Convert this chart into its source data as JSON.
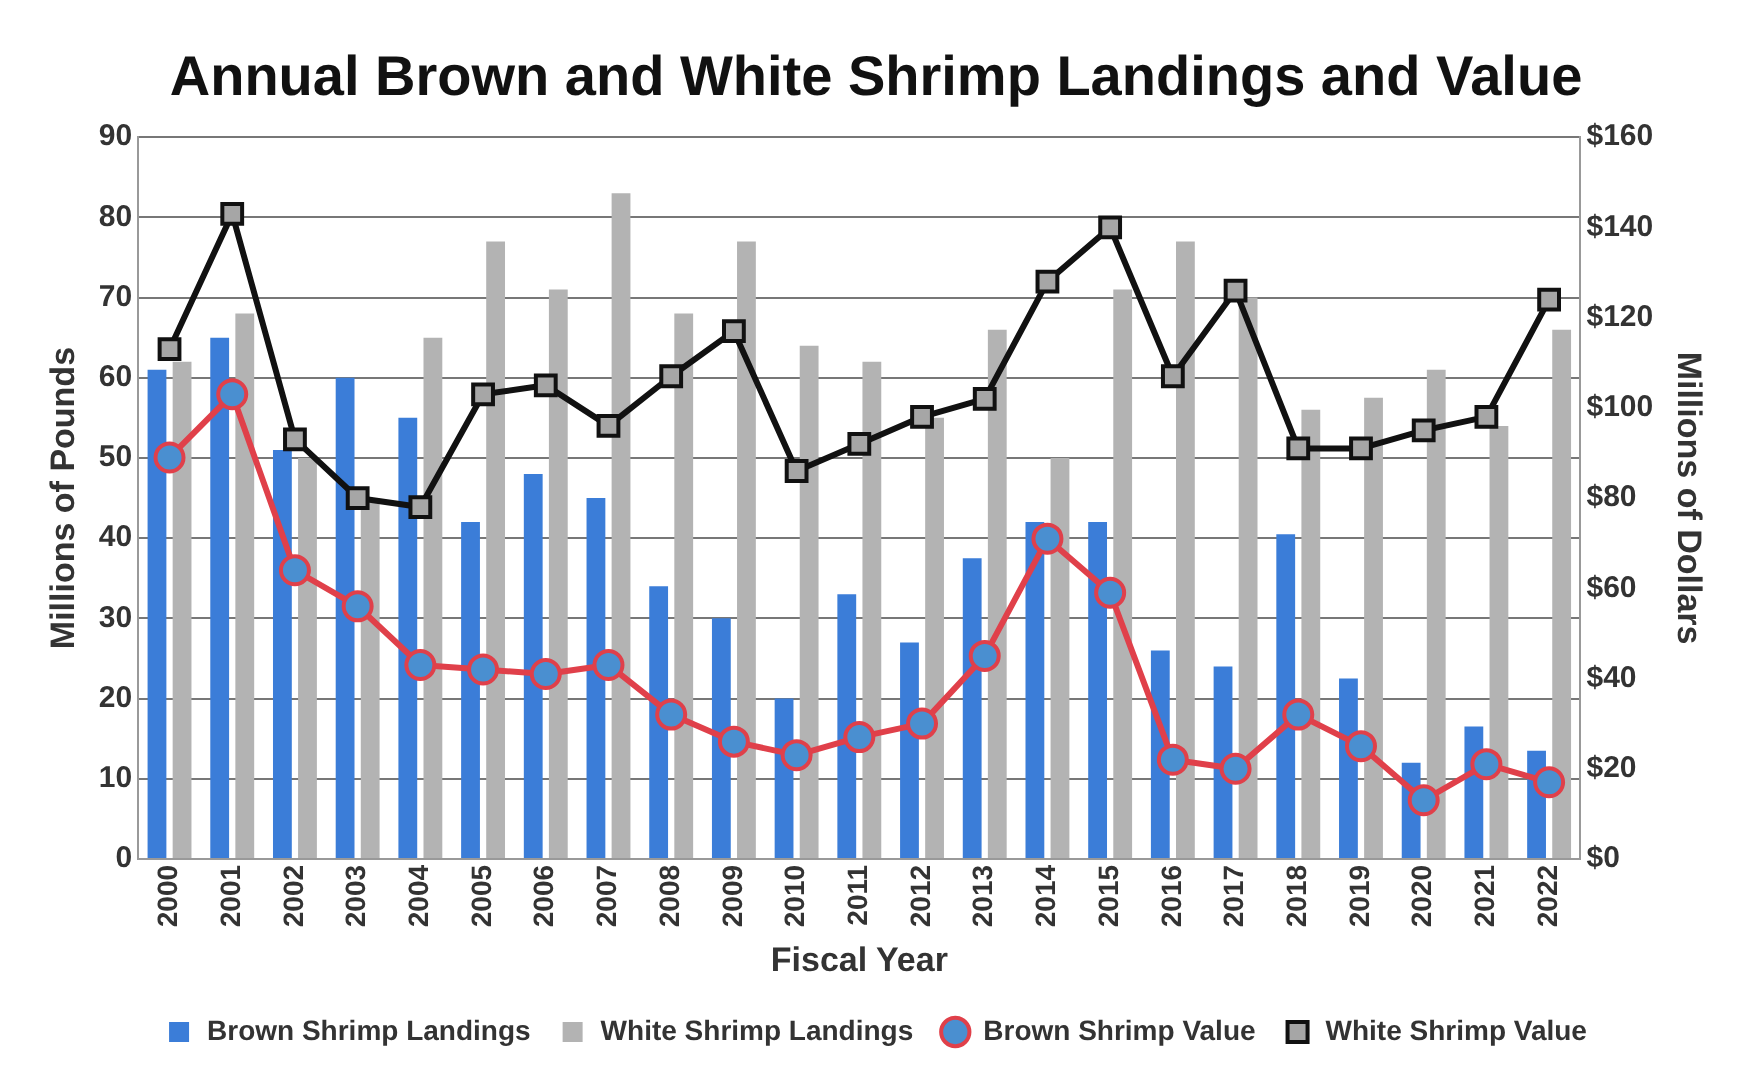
{
  "chart_data": {
    "type": "bar",
    "title": "Annual Brown and White Shrimp Landings and Value",
    "xlabel": "Fiscal Year",
    "ylabel": "Millions of Pounds",
    "y2label": "Millions of Dollars",
    "categories": [
      "2000",
      "2001",
      "2002",
      "2003",
      "2004",
      "2005",
      "2006",
      "2007",
      "2008",
      "2009",
      "2010",
      "2011",
      "2012",
      "2013",
      "2014",
      "2015",
      "2016",
      "2017",
      "2018",
      "2019",
      "2020",
      "2021",
      "2022"
    ],
    "series": [
      {
        "name": "Brown Shrimp Landings",
        "color": "#3b7dd8",
        "values": [
          61,
          65,
          51,
          60,
          55,
          42,
          48,
          45,
          34,
          30,
          20,
          33,
          27,
          37.5,
          42,
          42,
          26,
          24,
          40.5,
          22.5,
          12,
          16.5,
          13.5
        ]
      },
      {
        "name": "White Shrimp Landings",
        "color": "#b3b3b3",
        "values": [
          62,
          68,
          50,
          45,
          65,
          77,
          71,
          83,
          68,
          77,
          64,
          62,
          55,
          66,
          50,
          71,
          77,
          70,
          56,
          57.5,
          61,
          54,
          66
        ]
      },
      {
        "name": "Brown Shrimp Value",
        "type": "line",
        "axis": "y2",
        "color": "#e0404a",
        "marker": "circle",
        "values": [
          89,
          103,
          64,
          56,
          43,
          42,
          41,
          43,
          32,
          26,
          23,
          27,
          30,
          45,
          71,
          59,
          22,
          20,
          32,
          25,
          13,
          21,
          17
        ]
      },
      {
        "name": "White Shrimp Value",
        "type": "line",
        "axis": "y2",
        "color": "#111111",
        "marker": "square",
        "values": [
          113,
          143,
          93,
          80,
          78,
          103,
          105,
          96,
          107,
          117,
          86,
          92,
          98,
          102,
          128,
          140,
          107,
          126,
          91,
          91,
          95,
          98,
          124
        ]
      }
    ],
    "ylim": [
      0,
      90
    ],
    "yticks": [
      0,
      10,
      20,
      30,
      40,
      50,
      60,
      70,
      80,
      90
    ],
    "y2lim": [
      0,
      160
    ],
    "y2ticks": [
      {
        "value": 0,
        "label": "$0"
      },
      {
        "value": 20,
        "label": "$20"
      },
      {
        "value": 40,
        "label": "$40"
      },
      {
        "value": 60,
        "label": "$60"
      },
      {
        "value": 80,
        "label": "$80"
      },
      {
        "value": 100,
        "label": "$100"
      },
      {
        "value": 120,
        "label": "$120"
      },
      {
        "value": 140,
        "label": "$140"
      },
      {
        "value": 160,
        "label": "$160"
      }
    ],
    "grid": "y",
    "legend": "bottom"
  }
}
